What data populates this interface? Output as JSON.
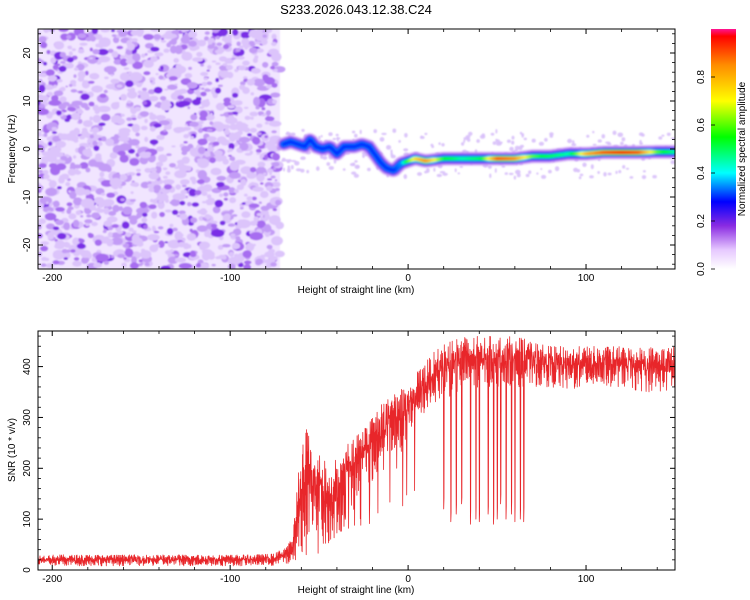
{
  "figure_title": "S233.2026.043.12.38.C24",
  "chart_data": [
    {
      "type": "heatmap",
      "title": "S233.2026.043.12.38.C24",
      "xlabel": "Height of straight line (km)",
      "ylabel": "Frequency (Hz)",
      "xlim": [
        -208,
        150
      ],
      "ylim": [
        -25,
        25
      ],
      "x_ticks": [
        -200,
        -100,
        0,
        100
      ],
      "y_ticks": [
        -20,
        -10,
        0,
        10,
        20
      ],
      "x_tick_labels": [
        "-200",
        "-100",
        "0",
        "100"
      ],
      "y_tick_labels": [
        "-20",
        "-10",
        "0",
        "10",
        "20"
      ],
      "noise_region_x": [
        -208,
        -72
      ],
      "ridge": {
        "x": [
          -70,
          -66,
          -62,
          -58,
          -55,
          -52,
          -48,
          -44,
          -40,
          -36,
          -33,
          -30,
          -26,
          -22,
          -18,
          -15,
          -12,
          -8,
          -4,
          0,
          4,
          10,
          20,
          30,
          40,
          50,
          60,
          70,
          80,
          90,
          100,
          110,
          120,
          130,
          140,
          150
        ],
        "freq": [
          1,
          1.5,
          1,
          0.5,
          2,
          0.5,
          0,
          0.5,
          -1,
          0.5,
          0.5,
          0.5,
          1,
          0.5,
          -1.5,
          -3,
          -4,
          -4.5,
          -3,
          -2.5,
          -2,
          -2.5,
          -2,
          -2,
          -2,
          -2,
          -2,
          -1.5,
          -1.5,
          -1,
          -1,
          -0.7,
          -0.7,
          -0.7,
          -0.6,
          -0.6
        ],
        "amplitude": [
          0.3,
          0.3,
          0.3,
          0.3,
          0.3,
          0.3,
          0.3,
          0.3,
          0.3,
          0.3,
          0.3,
          0.3,
          0.3,
          0.3,
          0.3,
          0.3,
          0.3,
          0.3,
          0.35,
          0.6,
          0.75,
          0.85,
          0.55,
          0.45,
          0.5,
          0.9,
          0.85,
          0.6,
          0.5,
          0.45,
          0.8,
          0.9,
          0.95,
          0.9,
          0.6,
          0.45
        ]
      },
      "colorbar": {
        "label": "Normalized spectral amplitude",
        "range": [
          0,
          1
        ],
        "ticks": [
          0.0,
          0.2,
          0.4,
          0.6,
          0.8
        ],
        "tick_labels": [
          "0.0",
          "0.2",
          "0.4",
          "0.6",
          "0.8"
        ]
      }
    },
    {
      "type": "line",
      "xlabel": "Height of straight line (km)",
      "ylabel": "SNR (10 * v/v)",
      "xlim": [
        -208,
        150
      ],
      "ylim": [
        0,
        470
      ],
      "x_ticks": [
        -200,
        -100,
        0,
        100
      ],
      "y_ticks": [
        0,
        100,
        200,
        300,
        400
      ],
      "x_tick_labels": [
        "-200",
        "-100",
        "0",
        "100"
      ],
      "y_tick_labels": [
        "0",
        "100",
        "200",
        "300",
        "400"
      ],
      "series": [
        {
          "name": "SNR",
          "color": "#e8262a",
          "x": [
            -208,
            -190,
            -170,
            -150,
            -130,
            -110,
            -90,
            -75,
            -65,
            -60,
            -56,
            -52,
            -48,
            -45,
            -42,
            -38,
            -35,
            -32,
            -28,
            -24,
            -20,
            -16,
            -12,
            -8,
            -4,
            0,
            5,
            10,
            15,
            20,
            25,
            30,
            40,
            50,
            60,
            70,
            80,
            90,
            100,
            110,
            120,
            130,
            140,
            150
          ],
          "min": [
            8,
            8,
            8,
            8,
            8,
            8,
            8,
            8,
            10,
            40,
            60,
            60,
            50,
            50,
            60,
            80,
            120,
            130,
            150,
            170,
            170,
            200,
            220,
            230,
            240,
            260,
            290,
            310,
            330,
            340,
            340,
            350,
            360,
            360,
            360,
            360,
            360,
            350,
            360,
            360,
            360,
            350,
            350,
            350
          ],
          "max": [
            30,
            30,
            30,
            30,
            30,
            30,
            30,
            32,
            60,
            260,
            300,
            250,
            230,
            200,
            220,
            220,
            250,
            260,
            270,
            290,
            310,
            330,
            340,
            350,
            360,
            370,
            390,
            410,
            430,
            450,
            460,
            460,
            460,
            460,
            460,
            450,
            440,
            440,
            440,
            440,
            440,
            440,
            440,
            440
          ],
          "dropouts": [
            [
              20,
              120
            ],
            [
              24,
              95
            ],
            [
              27,
              110
            ],
            [
              30,
              130
            ],
            [
              35,
              90
            ],
            [
              38,
              100
            ],
            [
              40,
              95
            ],
            [
              45,
              110
            ],
            [
              48,
              90
            ],
            [
              50,
              100
            ],
            [
              52,
              130
            ],
            [
              55,
              100
            ],
            [
              58,
              110
            ],
            [
              60,
              95
            ],
            [
              63,
              100
            ],
            [
              65,
              95
            ]
          ]
        }
      ]
    }
  ]
}
